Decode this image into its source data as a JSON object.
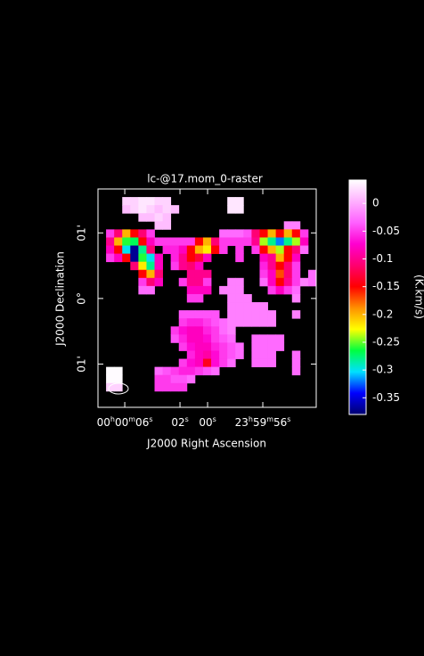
{
  "chart_data": {
    "type": "heatmap",
    "title": "lc-@17.mom_0-raster",
    "xlabel": "J2000 Right Ascension",
    "ylabel": "J2000 Declination",
    "colorbar_label": "(K.km/s)",
    "xlim": [
      7.94,
      -7.87
    ],
    "xticks": [
      {
        "value": 6,
        "label": "00h00m06s"
      },
      {
        "value": 2,
        "label": "02s"
      },
      {
        "value": 0,
        "label": "00s"
      },
      {
        "value": -4,
        "label": "23h59m56s"
      }
    ],
    "ylim": [
      -1.66,
      1.67
    ],
    "yticks": [
      {
        "value": 1,
        "label": "01'"
      },
      {
        "value": 0,
        "label": "0°"
      },
      {
        "value": -1,
        "label": "01'"
      }
    ],
    "clim": [
      -0.38,
      0.042
    ],
    "cticks": [
      0,
      -0.05,
      -0.1,
      -0.15,
      -0.2,
      -0.25,
      -0.3,
      -0.35
    ],
    "colormap": [
      "#00006e",
      "#0000ff",
      "#00e0ff",
      "#00ff40",
      "#ffff00",
      "#ff9000",
      "#ff0000",
      "#ff0070",
      "#ff00d0",
      "#ff60ff",
      "#ffb0ff",
      "#ffffff"
    ],
    "z": [
      [
        null,
        null,
        null,
        null,
        null,
        null,
        null,
        null,
        null,
        null,
        null,
        null,
        null,
        null,
        null,
        null,
        null,
        null,
        null,
        null,
        null,
        null,
        null,
        null,
        null,
        null,
        null
      ],
      [
        null,
        null,
        null,
        0.02,
        0.02,
        0.03,
        0.03,
        0.02,
        0.02,
        null,
        null,
        null,
        null,
        null,
        null,
        null,
        0.03,
        0.03,
        null,
        null,
        null,
        null,
        null,
        null,
        null,
        null,
        null
      ],
      [
        null,
        null,
        null,
        0.01,
        0.02,
        0.03,
        0.02,
        0.01,
        0.02,
        0.01,
        null,
        null,
        null,
        null,
        null,
        null,
        0.03,
        0.03,
        null,
        null,
        null,
        null,
        null,
        null,
        null,
        null,
        null
      ],
      [
        null,
        null,
        null,
        null,
        null,
        0.01,
        0.01,
        0.02,
        0.01,
        null,
        null,
        null,
        null,
        null,
        null,
        null,
        null,
        null,
        null,
        null,
        null,
        null,
        null,
        null,
        null,
        null,
        null
      ],
      [
        null,
        null,
        null,
        null,
        null,
        null,
        null,
        0.01,
        0.01,
        null,
        null,
        null,
        null,
        null,
        null,
        null,
        null,
        null,
        null,
        null,
        null,
        null,
        null,
        -0.02,
        -0.02,
        null,
        null
      ],
      [
        null,
        -0.05,
        -0.11,
        -0.2,
        -0.15,
        -0.11,
        -0.05,
        null,
        null,
        null,
        null,
        null,
        null,
        null,
        null,
        -0.03,
        -0.03,
        -0.03,
        -0.04,
        -0.11,
        -0.15,
        -0.2,
        -0.15,
        -0.2,
        -0.15,
        -0.05,
        null
      ],
      [
        null,
        -0.1,
        -0.2,
        -0.26,
        -0.27,
        -0.15,
        -0.08,
        -0.05,
        -0.05,
        -0.05,
        -0.05,
        -0.05,
        -0.15,
        -0.2,
        -0.11,
        -0.05,
        -0.05,
        -0.05,
        -0.05,
        -0.1,
        -0.24,
        -0.28,
        -0.32,
        -0.28,
        -0.24,
        -0.08,
        null
      ],
      [
        null,
        -0.08,
        -0.15,
        -0.3,
        -0.37,
        -0.28,
        -0.11,
        null,
        -0.06,
        -0.06,
        -0.08,
        -0.15,
        -0.2,
        -0.22,
        -0.15,
        -0.05,
        null,
        -0.05,
        null,
        -0.05,
        -0.15,
        -0.2,
        -0.24,
        -0.15,
        -0.11,
        -0.03,
        null
      ],
      [
        null,
        -0.05,
        -0.08,
        -0.15,
        -0.37,
        -0.26,
        -0.3,
        -0.08,
        null,
        -0.06,
        -0.1,
        -0.15,
        -0.13,
        -0.08,
        null,
        null,
        null,
        -0.05,
        null,
        null,
        -0.08,
        -0.1,
        -0.2,
        -0.15,
        -0.08,
        null,
        null
      ],
      [
        null,
        null,
        null,
        null,
        -0.11,
        -0.22,
        -0.28,
        -0.08,
        null,
        -0.05,
        -0.1,
        -0.11,
        -0.08,
        null,
        null,
        null,
        null,
        null,
        null,
        null,
        -0.06,
        -0.1,
        -0.15,
        -0.11,
        -0.05,
        null,
        null
      ],
      [
        null,
        null,
        null,
        null,
        null,
        -0.15,
        -0.2,
        -0.11,
        null,
        null,
        null,
        -0.1,
        -0.1,
        -0.1,
        null,
        null,
        null,
        null,
        null,
        null,
        -0.05,
        -0.08,
        -0.17,
        -0.11,
        -0.05,
        null,
        -0.03
      ],
      [
        null,
        null,
        null,
        null,
        null,
        -0.05,
        -0.11,
        -0.08,
        null,
        null,
        -0.05,
        -0.1,
        -0.1,
        -0.05,
        null,
        null,
        -0.02,
        -0.02,
        null,
        null,
        -0.03,
        -0.08,
        -0.15,
        -0.1,
        -0.05,
        -0.02,
        -0.03
      ],
      [
        null,
        null,
        null,
        null,
        null,
        -0.03,
        -0.03,
        null,
        null,
        null,
        null,
        -0.08,
        -0.08,
        -0.08,
        null,
        -0.02,
        -0.02,
        -0.02,
        null,
        null,
        null,
        -0.05,
        -0.08,
        -0.05,
        -0.03,
        null,
        null
      ],
      [
        null,
        null,
        null,
        null,
        null,
        null,
        null,
        null,
        null,
        null,
        null,
        -0.05,
        -0.05,
        null,
        null,
        null,
        -0.02,
        -0.02,
        -0.02,
        null,
        null,
        null,
        null,
        null,
        -0.02,
        null,
        null
      ],
      [
        null,
        null,
        null,
        null,
        null,
        null,
        null,
        null,
        null,
        null,
        null,
        null,
        null,
        null,
        null,
        null,
        -0.02,
        -0.02,
        -0.02,
        -0.02,
        -0.02,
        null,
        null,
        null,
        null,
        null,
        null
      ],
      [
        null,
        null,
        null,
        null,
        null,
        null,
        null,
        null,
        null,
        null,
        -0.04,
        -0.04,
        -0.04,
        -0.04,
        -0.04,
        null,
        -0.02,
        -0.02,
        -0.02,
        -0.02,
        -0.02,
        -0.02,
        null,
        null,
        -0.02,
        null,
        null
      ],
      [
        null,
        null,
        null,
        null,
        null,
        null,
        null,
        null,
        null,
        null,
        -0.05,
        -0.06,
        -0.06,
        -0.05,
        -0.04,
        -0.03,
        -0.02,
        -0.02,
        -0.02,
        -0.02,
        -0.02,
        -0.02,
        null,
        null,
        null,
        null,
        null
      ],
      [
        null,
        null,
        null,
        null,
        null,
        null,
        null,
        null,
        null,
        -0.05,
        -0.07,
        -0.08,
        -0.08,
        -0.06,
        -0.05,
        -0.03,
        -0.02,
        null,
        null,
        null,
        null,
        null,
        null,
        null,
        null,
        null,
        null
      ],
      [
        null,
        null,
        null,
        null,
        null,
        null,
        null,
        null,
        null,
        -0.04,
        -0.06,
        -0.08,
        -0.08,
        -0.07,
        -0.05,
        -0.04,
        -0.03,
        null,
        null,
        -0.03,
        -0.03,
        -0.03,
        -0.03,
        null,
        null,
        null,
        null
      ],
      [
        null,
        null,
        null,
        null,
        null,
        null,
        null,
        null,
        null,
        null,
        -0.05,
        -0.07,
        -0.08,
        -0.08,
        -0.06,
        -0.05,
        -0.04,
        -0.03,
        null,
        -0.03,
        -0.03,
        -0.03,
        -0.03,
        null,
        null,
        null,
        null
      ],
      [
        null,
        null,
        null,
        null,
        null,
        null,
        null,
        null,
        null,
        null,
        null,
        -0.06,
        -0.08,
        -0.09,
        -0.07,
        -0.05,
        -0.04,
        -0.03,
        null,
        -0.03,
        -0.03,
        -0.03,
        null,
        null,
        -0.03,
        null,
        null
      ],
      [
        null,
        null,
        null,
        null,
        null,
        null,
        null,
        null,
        null,
        null,
        -0.05,
        -0.07,
        -0.08,
        -0.14,
        -0.07,
        -0.05,
        -0.03,
        null,
        null,
        -0.03,
        -0.03,
        -0.03,
        null,
        null,
        -0.03,
        null,
        null
      ],
      [
        null,
        0.04,
        0.04,
        null,
        null,
        null,
        null,
        -0.03,
        -0.04,
        -0.05,
        -0.06,
        -0.06,
        -0.05,
        -0.04,
        -0.03,
        null,
        null,
        null,
        null,
        null,
        null,
        null,
        null,
        null,
        -0.03,
        null,
        null
      ],
      [
        null,
        0.04,
        0.04,
        null,
        null,
        null,
        null,
        -0.05,
        -0.05,
        -0.04,
        -0.04,
        -0.03,
        null,
        null,
        null,
        null,
        null,
        null,
        null,
        null,
        null,
        null,
        null,
        null,
        null,
        null,
        null
      ],
      [
        null,
        0.02,
        0.02,
        null,
        null,
        null,
        null,
        -0.05,
        -0.05,
        -0.05,
        -0.05,
        null,
        null,
        null,
        null,
        null,
        null,
        null,
        null,
        null,
        null,
        null,
        null,
        null,
        null,
        null,
        null
      ],
      [
        null,
        null,
        null,
        null,
        null,
        null,
        null,
        null,
        null,
        null,
        null,
        null,
        null,
        null,
        null,
        null,
        null,
        null,
        null,
        null,
        null,
        null,
        null,
        null,
        null,
        null,
        null
      ],
      [
        null,
        null,
        null,
        null,
        null,
        null,
        null,
        null,
        null,
        null,
        null,
        null,
        null,
        null,
        null,
        null,
        null,
        null,
        null,
        null,
        null,
        null,
        null,
        null,
        null,
        null,
        null
      ]
    ]
  }
}
